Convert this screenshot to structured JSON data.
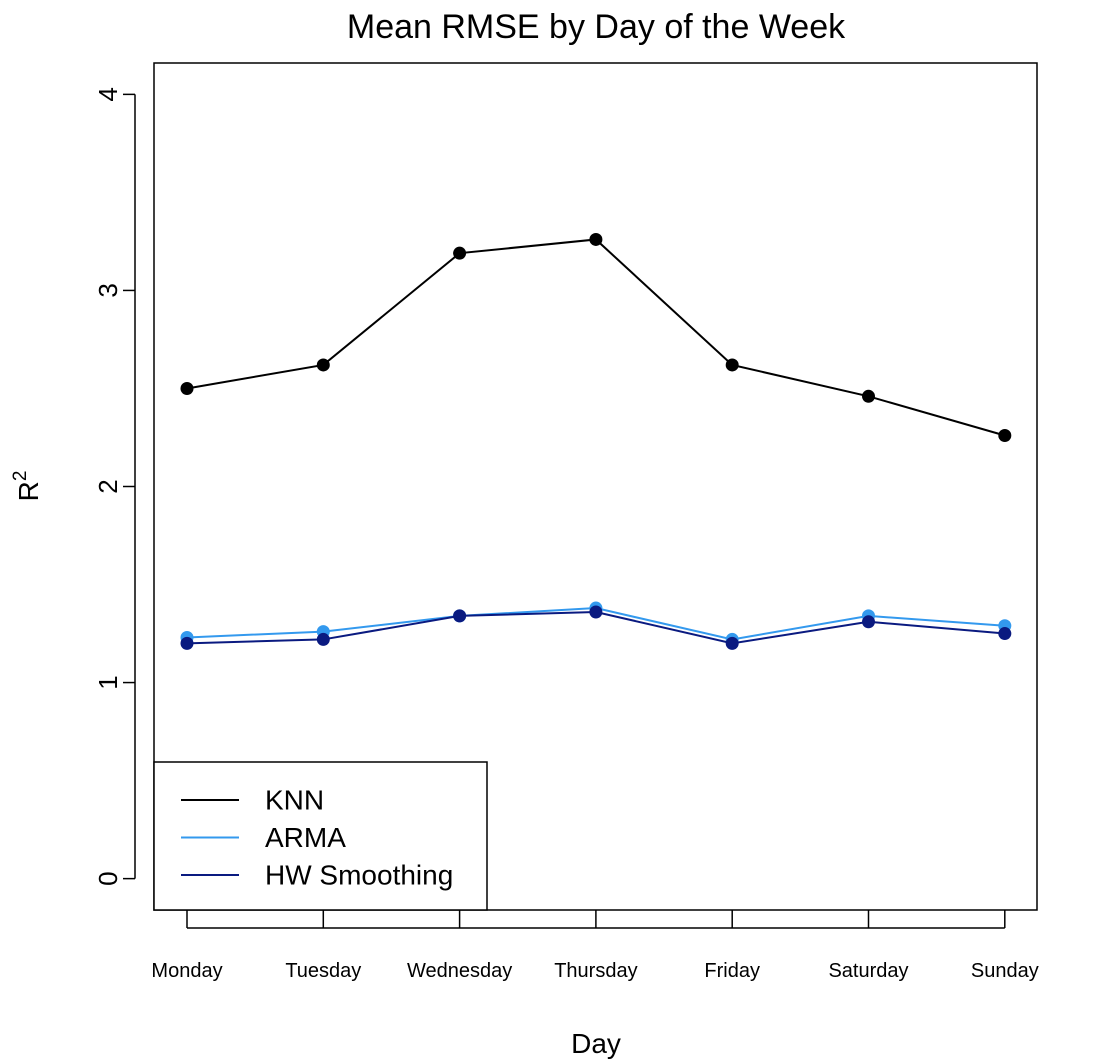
{
  "chart_data": {
    "type": "line",
    "title": "Mean RMSE by Day of the Week",
    "xlabel": "Day",
    "ylabel": "R",
    "ylabel_superscript": "2",
    "categories": [
      "Monday",
      "Tuesday",
      "Wednesday",
      "Thursday",
      "Friday",
      "Saturday",
      "Sunday"
    ],
    "yticks": [
      "0",
      "1",
      "2",
      "3",
      "4"
    ],
    "ylim": [
      -0.16,
      4.16
    ],
    "grid": false,
    "legend_position": "bottom-left",
    "series": [
      {
        "name": "KNN",
        "color": "#000000",
        "values": [
          2.5,
          2.62,
          3.19,
          3.26,
          2.62,
          2.46,
          2.26
        ]
      },
      {
        "name": "ARMA",
        "color": "#3399ee",
        "values": [
          1.23,
          1.26,
          1.34,
          1.38,
          1.22,
          1.34,
          1.29
        ]
      },
      {
        "name": "HW Smoothing",
        "color": "#0a1a80",
        "values": [
          1.2,
          1.22,
          1.34,
          1.36,
          1.2,
          1.31,
          1.25
        ]
      }
    ]
  }
}
